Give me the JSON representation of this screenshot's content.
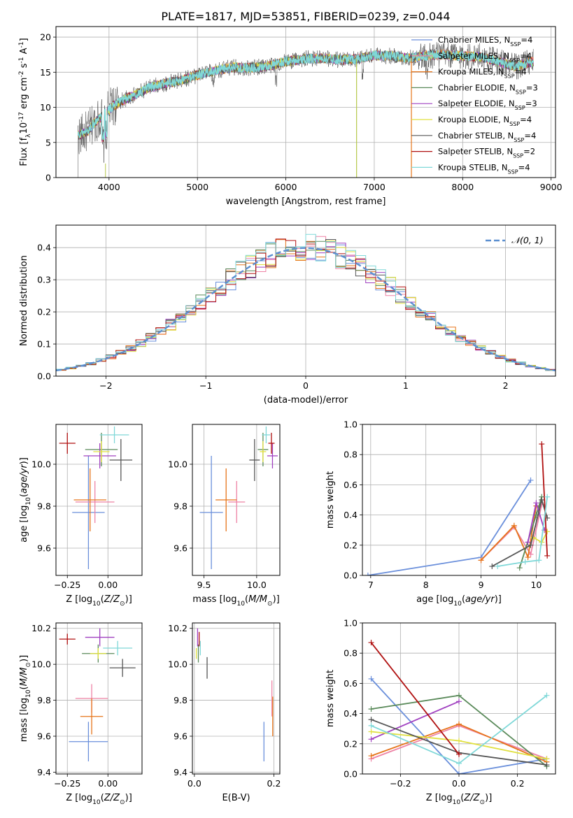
{
  "title": "PLATE=1817, MJD=53851, FIBERID=0239, z=0.044",
  "legend_models": [
    {
      "label": "Chabrier MILES, N$_{SSP}$=4",
      "color": "#6a8fdb"
    },
    {
      "label": "Salpeter MILES, N$_{SSP}$=4",
      "color": "#ee82a5"
    },
    {
      "label": "Kroupa MILES, N$_{SSP}$=4",
      "color": "#e6741a"
    },
    {
      "label": "Chabrier ELODIE, N$_{SSP}$=3",
      "color": "#5a8a5a"
    },
    {
      "label": "Salpeter ELODIE, N$_{SSP}$=3",
      "color": "#a040c0"
    },
    {
      "label": "Kroupa ELODIE, N$_{SSP}$=4",
      "color": "#e0e040"
    },
    {
      "label": "Chabrier STELIB, N$_{SSP}$=4",
      "color": "#555555"
    },
    {
      "label": "Salpeter STELIB, N$_{SSP}$=2",
      "color": "#b01010"
    },
    {
      "label": "Kroupa STELIB, N$_{SSP}$=4",
      "color": "#7fd8d8"
    }
  ],
  "chart_data": [
    {
      "id": "spectrum",
      "type": "line",
      "xlabel": "wavelength [Angstrom, rest frame]",
      "ylabel": "Flux [f$_\\lambda$10$^{-17}$ erg cm$^{-2}$ s$^{-1}$ A$^{-1}$]",
      "xlim": [
        3400,
        9050
      ],
      "ylim": [
        0,
        21.5
      ],
      "xticks": [
        4000,
        5000,
        6000,
        7000,
        8000,
        9000
      ],
      "yticks": [
        0,
        5,
        10,
        15,
        20
      ],
      "x_range_data": [
        3650,
        8800
      ],
      "envelope": {
        "x": [
          3650,
          3750,
          3850,
          3950,
          4050,
          4150,
          4300,
          4450,
          4600,
          4800,
          5000,
          5200,
          5400,
          5600,
          5800,
          6000,
          6200,
          6400,
          6600,
          6800,
          7000,
          7200,
          7400,
          7600,
          7800,
          8000,
          8200,
          8400,
          8600,
          8800
        ],
        "y": [
          6.0,
          6.5,
          8.0,
          9.0,
          10.2,
          11.0,
          11.8,
          12.8,
          13.3,
          13.8,
          14.6,
          15.2,
          15.7,
          15.6,
          15.9,
          16.5,
          16.9,
          17.0,
          16.8,
          16.9,
          17.4,
          17.3,
          17.0,
          17.4,
          17.5,
          17.3,
          17.2,
          16.5,
          15.8,
          16.5
        ]
      },
      "sky_dropouts": [
        6800,
        7420
      ]
    },
    {
      "id": "residual-hist",
      "type": "line",
      "xlabel": "(data-model)/error",
      "ylabel": "Normed distribution",
      "xlim": [
        -2.5,
        2.5
      ],
      "ylim": [
        0,
        0.47
      ],
      "xticks": [
        -2,
        -1,
        0,
        1,
        2
      ],
      "yticks": [
        0.0,
        0.1,
        0.2,
        0.3,
        0.4
      ],
      "reference": {
        "label": "$\\mathcal{N}(0, 1)$",
        "mean": 0,
        "sigma": 1,
        "color": "#5b8fd0"
      }
    },
    {
      "id": "age-vs-Z",
      "type": "scatter",
      "xlabel": "Z [log$_{10}$($Z/Z_\\odot$)]",
      "ylabel": "age  [log$_{10}$($age/yr$)]",
      "xlim": [
        -0.32,
        0.21
      ],
      "ylim": [
        9.47,
        10.19
      ],
      "xticks": [
        -0.25,
        0.0
      ],
      "yticks": [
        9.6,
        9.8,
        10.0
      ],
      "points": [
        {
          "x": -0.12,
          "y": 9.77,
          "xerr": 0.1,
          "yerr": 0.27,
          "model": 0
        },
        {
          "x": -0.08,
          "y": 9.82,
          "xerr": 0.12,
          "yerr": 0.1,
          "model": 1
        },
        {
          "x": -0.11,
          "y": 9.83,
          "xerr": 0.1,
          "yerr": 0.15,
          "model": 2
        },
        {
          "x": -0.04,
          "y": 10.07,
          "xerr": 0.1,
          "yerr": 0.08,
          "model": 3
        },
        {
          "x": -0.05,
          "y": 10.04,
          "xerr": 0.1,
          "yerr": 0.06,
          "model": 4
        },
        {
          "x": -0.04,
          "y": 10.06,
          "xerr": 0.05,
          "yerr": 0.05,
          "model": 5
        },
        {
          "x": 0.08,
          "y": 10.02,
          "xerr": 0.07,
          "yerr": 0.1,
          "model": 6
        },
        {
          "x": -0.25,
          "y": 10.1,
          "xerr": 0.05,
          "yerr": 0.05,
          "model": 7
        },
        {
          "x": 0.04,
          "y": 10.14,
          "xerr": 0.09,
          "yerr": 0.04,
          "model": 8
        }
      ]
    },
    {
      "id": "age-vs-mass",
      "type": "scatter",
      "xlabel": "mass [log$_{10}$($M/M_\\odot$)]",
      "ylabel": "",
      "xlim": [
        9.39,
        10.22
      ],
      "ylim": [
        9.47,
        10.19
      ],
      "xticks": [
        9.5,
        10.0
      ],
      "yticks": [
        9.6,
        9.8,
        10.0
      ],
      "points": [
        {
          "x": 9.57,
          "y": 9.77,
          "xerr": 0.11,
          "yerr": 0.27,
          "model": 0
        },
        {
          "x": 9.81,
          "y": 9.82,
          "xerr": 0.08,
          "yerr": 0.1,
          "model": 1
        },
        {
          "x": 9.71,
          "y": 9.83,
          "xerr": 0.1,
          "yerr": 0.15,
          "model": 2
        },
        {
          "x": 10.06,
          "y": 10.07,
          "xerr": 0.05,
          "yerr": 0.08,
          "model": 3
        },
        {
          "x": 10.15,
          "y": 10.04,
          "xerr": 0.05,
          "yerr": 0.06,
          "model": 4
        },
        {
          "x": 10.06,
          "y": 10.06,
          "xerr": 0.03,
          "yerr": 0.05,
          "model": 5
        },
        {
          "x": 9.98,
          "y": 10.02,
          "xerr": 0.05,
          "yerr": 0.1,
          "model": 6
        },
        {
          "x": 10.14,
          "y": 10.1,
          "xerr": 0.03,
          "yerr": 0.05,
          "model": 7
        },
        {
          "x": 10.09,
          "y": 10.14,
          "xerr": 0.04,
          "yerr": 0.04,
          "model": 8
        }
      ]
    },
    {
      "id": "massweight-vs-age",
      "type": "line",
      "xlabel": "age  [log$_{10}$($age/yr$)]",
      "ylabel": "mass weight",
      "xlim": [
        6.85,
        10.35
      ],
      "ylim": [
        0.0,
        1.0
      ],
      "xticks": [
        7,
        8,
        9,
        10
      ],
      "yticks": [
        0.0,
        0.2,
        0.4,
        0.6,
        0.8,
        1.0
      ],
      "series": [
        {
          "model": 0,
          "x": [
            6.95,
            9.0,
            9.9
          ],
          "y": [
            0.0,
            0.12,
            0.63
          ]
        },
        {
          "model": 1,
          "x": [
            9.0,
            9.6,
            9.9,
            10.1
          ],
          "y": [
            0.1,
            0.32,
            0.14,
            0.47
          ]
        },
        {
          "model": 2,
          "x": [
            9.0,
            9.6,
            9.85,
            10.0
          ],
          "y": [
            0.1,
            0.33,
            0.12,
            0.46
          ]
        },
        {
          "model": 3,
          "x": [
            9.7,
            10.0,
            10.1
          ],
          "y": [
            0.05,
            0.4,
            0.52
          ]
        },
        {
          "model": 4,
          "x": [
            9.85,
            10.0,
            10.15
          ],
          "y": [
            0.22,
            0.48,
            0.3
          ]
        },
        {
          "model": 5,
          "x": [
            9.95,
            10.1,
            10.2
          ],
          "y": [
            0.25,
            0.22,
            0.29
          ]
        },
        {
          "model": 6,
          "x": [
            9.2,
            9.9,
            10.1,
            10.2
          ],
          "y": [
            0.06,
            0.2,
            0.5,
            0.38
          ]
        },
        {
          "model": 7,
          "x": [
            10.1,
            10.2
          ],
          "y": [
            0.87,
            0.13
          ]
        },
        {
          "model": 8,
          "x": [
            9.3,
            9.8,
            10.05,
            10.2
          ],
          "y": [
            0.06,
            0.09,
            0.1,
            0.52
          ]
        }
      ]
    },
    {
      "id": "mass-vs-Z",
      "type": "scatter",
      "xlabel": "Z [log$_{10}$($Z/Z_\\odot$)]",
      "ylabel": "mass [log$_{10}$($M/M_\\odot$)]",
      "xlim": [
        -0.32,
        0.21
      ],
      "ylim": [
        9.39,
        10.23
      ],
      "xticks": [
        -0.25,
        0.0
      ],
      "yticks": [
        9.4,
        9.6,
        9.8,
        10.0,
        10.2
      ],
      "points": [
        {
          "x": -0.12,
          "y": 9.57,
          "xerr": 0.12,
          "yerr": 0.11,
          "model": 0
        },
        {
          "x": -0.1,
          "y": 9.81,
          "xerr": 0.1,
          "yerr": 0.08,
          "model": 1
        },
        {
          "x": -0.1,
          "y": 9.71,
          "xerr": 0.07,
          "yerr": 0.1,
          "model": 2
        },
        {
          "x": -0.06,
          "y": 10.06,
          "xerr": 0.1,
          "yerr": 0.05,
          "model": 3
        },
        {
          "x": -0.05,
          "y": 10.15,
          "xerr": 0.09,
          "yerr": 0.05,
          "model": 4
        },
        {
          "x": -0.06,
          "y": 10.06,
          "xerr": 0.05,
          "yerr": 0.03,
          "model": 5
        },
        {
          "x": 0.09,
          "y": 9.98,
          "xerr": 0.08,
          "yerr": 0.05,
          "model": 6
        },
        {
          "x": -0.25,
          "y": 10.14,
          "xerr": 0.05,
          "yerr": 0.03,
          "model": 7
        },
        {
          "x": 0.06,
          "y": 10.09,
          "xerr": 0.09,
          "yerr": 0.04,
          "model": 8
        }
      ]
    },
    {
      "id": "mass-vs-ebv",
      "type": "scatter",
      "xlabel": "E(B-V)",
      "ylabel": "",
      "xlim": [
        -0.005,
        0.215
      ],
      "ylim": [
        9.39,
        10.23
      ],
      "xticks": [
        0.0,
        0.2
      ],
      "yticks": [
        9.4,
        9.6,
        9.8,
        10.0,
        10.2
      ],
      "points": [
        {
          "x": 0.175,
          "y": 9.57,
          "xerr": 0.0,
          "yerr": 0.11,
          "model": 0
        },
        {
          "x": 0.195,
          "y": 9.81,
          "xerr": 0.0,
          "yerr": 0.1,
          "model": 1
        },
        {
          "x": 0.197,
          "y": 9.71,
          "xerr": 0.0,
          "yerr": 0.11,
          "model": 2
        },
        {
          "x": 0.01,
          "y": 10.06,
          "xerr": 0.0,
          "yerr": 0.05,
          "model": 3
        },
        {
          "x": 0.008,
          "y": 10.15,
          "xerr": 0.0,
          "yerr": 0.05,
          "model": 4
        },
        {
          "x": 0.005,
          "y": 10.06,
          "xerr": 0.0,
          "yerr": 0.03,
          "model": 5
        },
        {
          "x": 0.032,
          "y": 9.98,
          "xerr": 0.0,
          "yerr": 0.06,
          "model": 6
        },
        {
          "x": 0.012,
          "y": 10.14,
          "xerr": 0.0,
          "yerr": 0.04,
          "model": 7
        },
        {
          "x": 0.015,
          "y": 10.09,
          "xerr": 0.0,
          "yerr": 0.04,
          "model": 8
        }
      ]
    },
    {
      "id": "massweight-vs-Z",
      "type": "line",
      "xlabel": "Z [log$_{10}$($Z/Z_\\odot$)]",
      "ylabel": "mass weight",
      "xlim": [
        -0.33,
        0.33
      ],
      "ylim": [
        0.0,
        1.0
      ],
      "xticks": [
        -0.2,
        0.0,
        0.2
      ],
      "yticks": [
        0.0,
        0.2,
        0.4,
        0.6,
        0.8,
        1.0
      ],
      "series": [
        {
          "model": 0,
          "x": [
            -0.3,
            0.0,
            0.3
          ],
          "y": [
            0.63,
            0.0,
            0.1
          ]
        },
        {
          "model": 1,
          "x": [
            -0.3,
            0.0,
            0.3
          ],
          "y": [
            0.1,
            0.32,
            0.1
          ]
        },
        {
          "model": 2,
          "x": [
            -0.3,
            0.0,
            0.3
          ],
          "y": [
            0.12,
            0.33,
            0.08
          ]
        },
        {
          "model": 3,
          "x": [
            -0.3,
            0.0,
            0.3
          ],
          "y": [
            0.43,
            0.52,
            0.05
          ]
        },
        {
          "model": 4,
          "x": [
            -0.3,
            0.0
          ],
          "y": [
            0.23,
            0.48
          ]
        },
        {
          "model": 5,
          "x": [
            -0.3,
            0.0,
            0.3
          ],
          "y": [
            0.28,
            0.22,
            0.1
          ]
        },
        {
          "model": 6,
          "x": [
            -0.3,
            0.0,
            0.3
          ],
          "y": [
            0.36,
            0.14,
            0.06
          ]
        },
        {
          "model": 7,
          "x": [
            -0.3,
            0.0
          ],
          "y": [
            0.87,
            0.13
          ]
        },
        {
          "model": 8,
          "x": [
            -0.3,
            0.0,
            0.3
          ],
          "y": [
            0.32,
            0.07,
            0.52
          ]
        }
      ]
    }
  ]
}
